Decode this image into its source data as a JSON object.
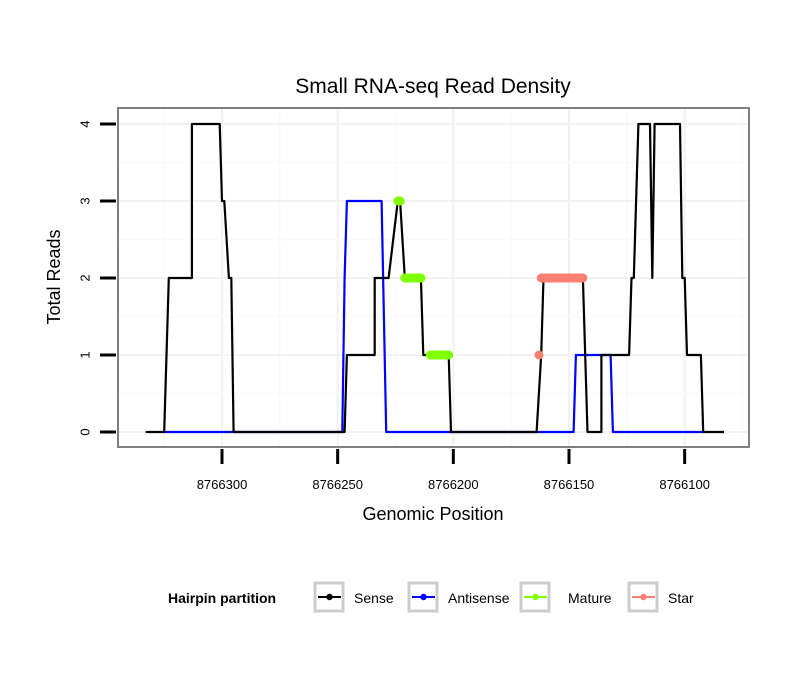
{
  "chart_data": {
    "type": "line",
    "title": "Small RNA-seq Read Density",
    "xlabel": "Genomic Position",
    "ylabel": "Total Reads",
    "x_reversed": true,
    "xlim": [
      8766340,
      8766075
    ],
    "ylim": [
      -0.2,
      4.2
    ],
    "x_ticks": [
      8766300,
      8766250,
      8766200,
      8766150,
      8766100
    ],
    "x_tick_labels": [
      "8766300",
      "8766250",
      "8766200",
      "8766150",
      "8766100"
    ],
    "y_ticks": [
      0,
      1,
      2,
      3,
      4
    ],
    "y_tick_labels": [
      "0",
      "1",
      "2",
      "3",
      "4"
    ],
    "grid": true,
    "legend": {
      "title": "Hairpin partition",
      "position": "bottom",
      "entries": [
        {
          "label": "Sense",
          "color": "#000000"
        },
        {
          "label": "Antisense",
          "color": "#0000ff"
        },
        {
          "label": "Mature",
          "color": "#7fff00"
        },
        {
          "label": "Star",
          "color": "#fa8072"
        }
      ]
    },
    "series": [
      {
        "name": "Sense",
        "color": "#000000",
        "points": [
          [
            8766333,
            0
          ],
          [
            8766325,
            0
          ],
          [
            8766323,
            2
          ],
          [
            8766313,
            2
          ],
          [
            8766313,
            4
          ],
          [
            8766301,
            4
          ],
          [
            8766300,
            3
          ],
          [
            8766299,
            3
          ],
          [
            8766297,
            2
          ],
          [
            8766296,
            2
          ],
          [
            8766295,
            0
          ],
          [
            8766247,
            0
          ],
          [
            8766246,
            1
          ],
          [
            8766234,
            1
          ],
          [
            8766234,
            2
          ],
          [
            8766228,
            2
          ],
          [
            8766224,
            3
          ],
          [
            8766223,
            3
          ],
          [
            8766221,
            2
          ],
          [
            8766214,
            2
          ],
          [
            8766213,
            1
          ],
          [
            8766202,
            1
          ],
          [
            8766201,
            0
          ],
          [
            8766164,
            0
          ],
          [
            8766162,
            1
          ],
          [
            8766161,
            2
          ],
          [
            8766144,
            2
          ],
          [
            8766142,
            0
          ],
          [
            8766136,
            0
          ],
          [
            8766136,
            1
          ],
          [
            8766124,
            1
          ],
          [
            8766123,
            2
          ],
          [
            8766122,
            2
          ],
          [
            8766120,
            4
          ],
          [
            8766115,
            4
          ],
          [
            8766114,
            2
          ],
          [
            8766113,
            4
          ],
          [
            8766102,
            4
          ],
          [
            8766101,
            2
          ],
          [
            8766100,
            2
          ],
          [
            8766099,
            1
          ],
          [
            8766093,
            1
          ],
          [
            8766092,
            0
          ],
          [
            8766083,
            0
          ]
        ]
      },
      {
        "name": "Antisense",
        "color": "#0000ff",
        "points": [
          [
            8766325,
            0
          ],
          [
            8766295,
            0
          ],
          [
            8766248,
            0
          ],
          [
            8766247,
            2
          ],
          [
            8766246,
            3
          ],
          [
            8766231,
            3
          ],
          [
            8766229,
            0
          ],
          [
            8766201,
            0
          ],
          [
            8766164,
            0
          ],
          [
            8766148,
            0
          ],
          [
            8766147,
            1
          ],
          [
            8766132,
            1
          ],
          [
            8766131,
            0
          ],
          [
            8766092,
            0
          ]
        ]
      },
      {
        "name": "Mature",
        "color": "#7fff00",
        "segments": [
          {
            "x": [
              8766223,
              8766224
            ],
            "y": 3
          },
          {
            "x": [
              8766214,
              8766221
            ],
            "y": 2
          },
          {
            "x": [
              8766202,
              8766210
            ],
            "y": 1
          }
        ]
      },
      {
        "name": "Star",
        "color": "#fa8072",
        "segments": [
          {
            "x": [
              8766163,
              8766163
            ],
            "y": 1
          },
          {
            "x": [
              8766144,
              8766162
            ],
            "y": 2
          }
        ]
      }
    ]
  }
}
